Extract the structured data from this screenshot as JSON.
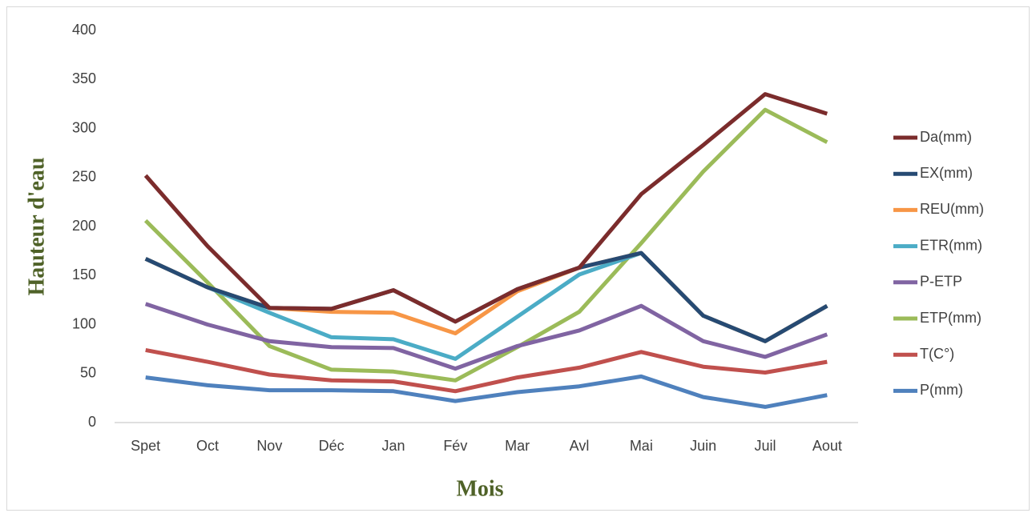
{
  "chart_data": {
    "type": "line",
    "x_label": "Mois",
    "y_label": "Hauteur d'eau",
    "categories": [
      "Spet",
      "Oct",
      "Nov",
      "Déc",
      "Jan",
      "Fév",
      "Mar",
      "Avl",
      "Mai",
      "Juin",
      "Juil",
      "Aout"
    ],
    "ylim": [
      0,
      400
    ],
    "yticks": [
      0,
      50,
      100,
      150,
      200,
      250,
      300,
      350,
      400
    ],
    "grid": false,
    "legend": "right",
    "series": [
      {
        "name": "Da(mm)",
        "color": "#7b2c2c",
        "values": [
          252,
          180,
          117,
          116,
          135,
          103,
          136,
          158,
          233,
          283,
          335,
          315
        ]
      },
      {
        "name": "EX(mm)",
        "color": "#264a73",
        "values": [
          167,
          138,
          117,
          116,
          135,
          103,
          136,
          158,
          173,
          109,
          83,
          119
        ]
      },
      {
        "name": "REU(mm)",
        "color": "#f79646",
        "values": [
          167,
          138,
          117,
          113,
          112,
          91,
          134,
          158,
          173,
          109,
          83,
          119
        ]
      },
      {
        "name": "ETR(mm)",
        "color": "#4bacc6",
        "values": [
          167,
          138,
          112,
          87,
          85,
          65,
          108,
          151,
          173,
          109,
          83,
          119
        ]
      },
      {
        "name": "P-ETP",
        "color": "#8064a2",
        "values": [
          121,
          100,
          83,
          77,
          76,
          55,
          78,
          94,
          119,
          83,
          67,
          90
        ]
      },
      {
        "name": "ETP(mm)",
        "color": "#9bbb59",
        "values": [
          206,
          143,
          78,
          54,
          52,
          43,
          77,
          113,
          183,
          256,
          319,
          286
        ]
      },
      {
        "name": "T(C°)",
        "color": "#c0504d",
        "values": [
          74,
          62,
          49,
          43,
          42,
          32,
          46,
          56,
          72,
          57,
          51,
          62
        ]
      },
      {
        "name": "P(mm)",
        "color": "#4f81bd",
        "values": [
          46,
          38,
          33,
          33,
          32,
          22,
          31,
          37,
          47,
          26,
          16,
          28
        ]
      }
    ]
  }
}
